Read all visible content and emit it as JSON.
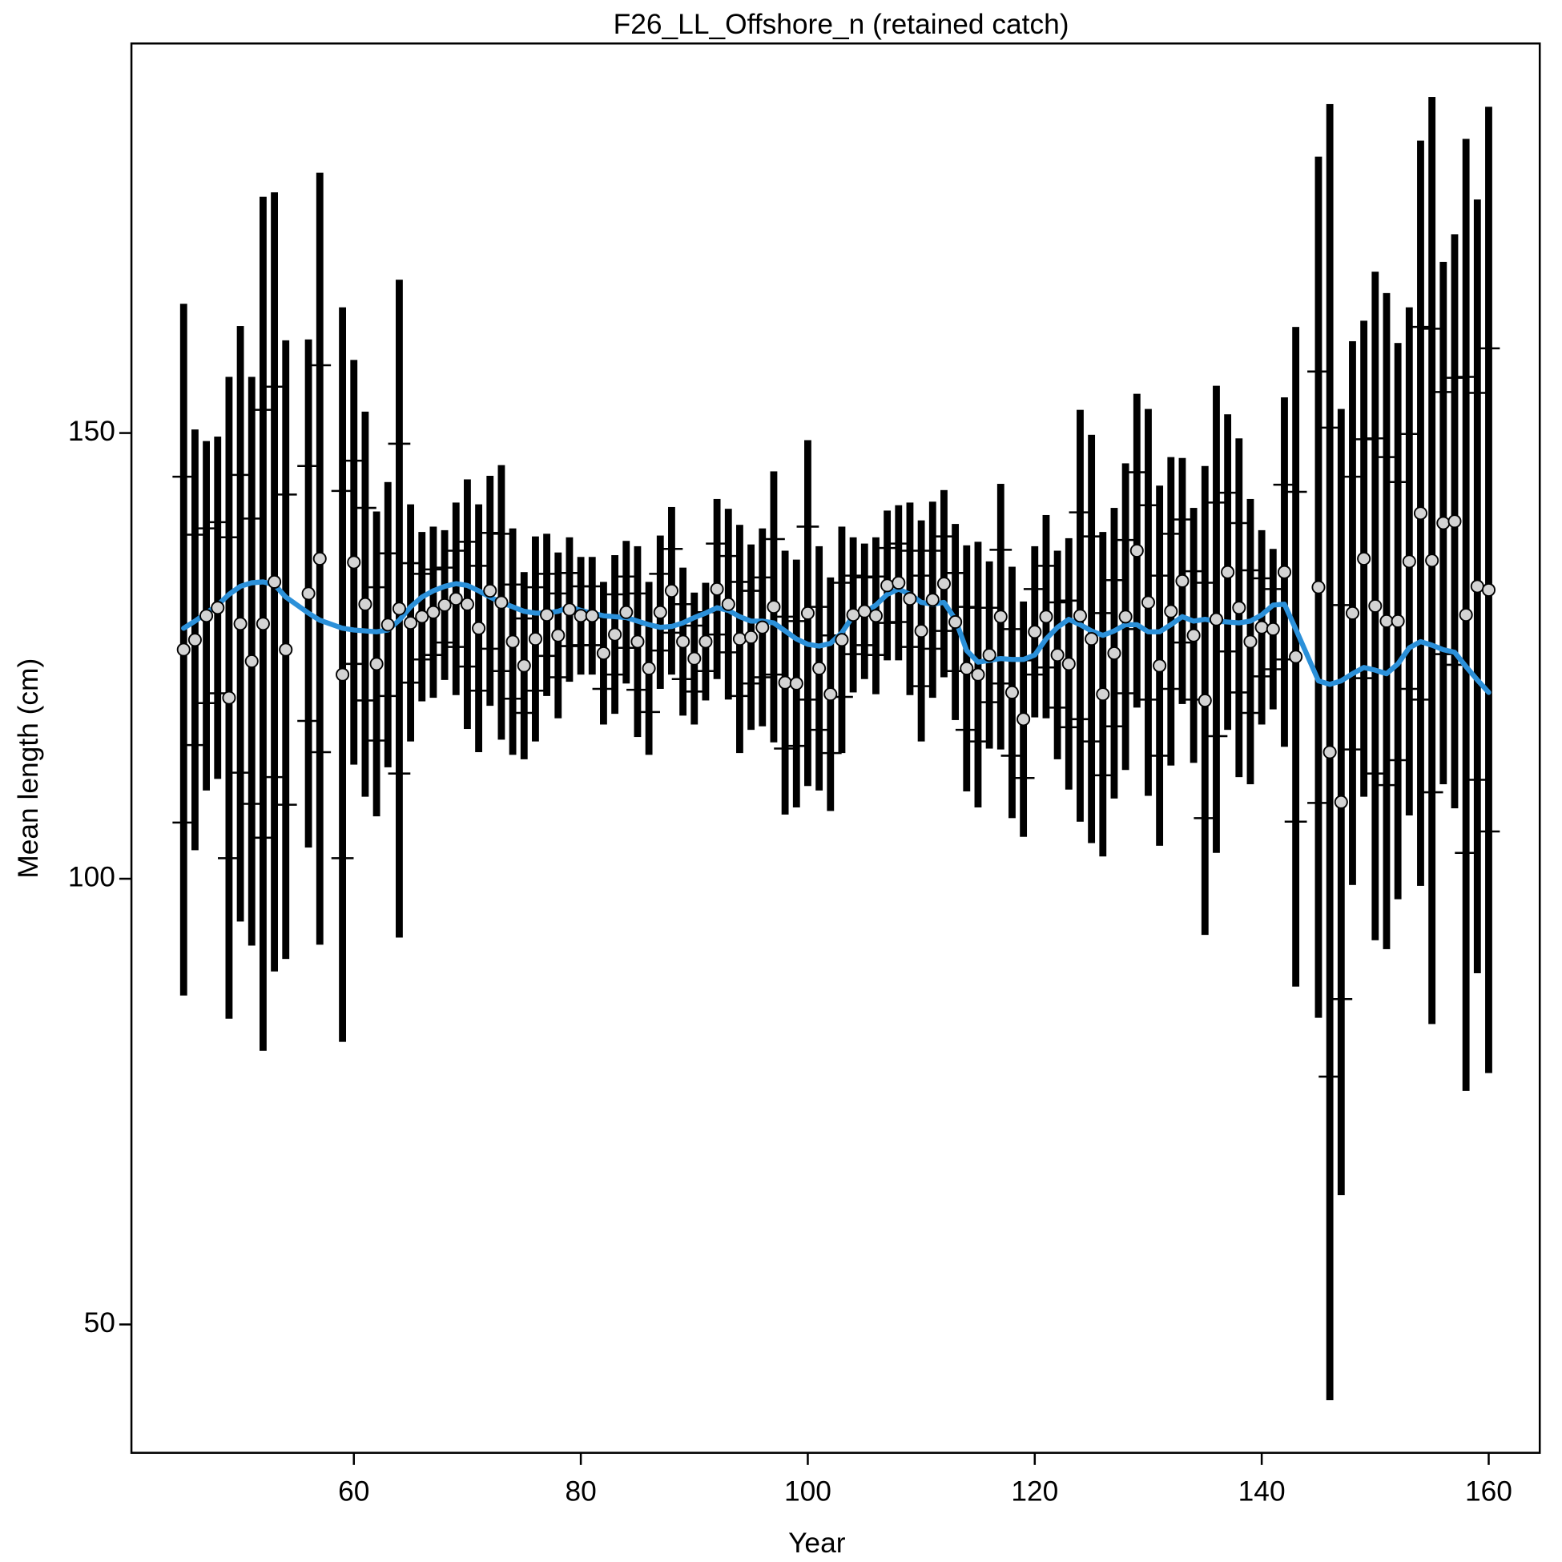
{
  "chart_data": {
    "type": "errorbar",
    "title": "F26_LL_Offshore_n (retained catch)",
    "x_label": "Year",
    "y_label": "Mean length (cm)",
    "xlim": [
      40.4,
      164.5
    ],
    "ylim": [
      35.6,
      193.7
    ],
    "xticks": [
      60,
      80,
      100,
      120,
      140,
      160
    ],
    "yticks": [
      50,
      100,
      150
    ],
    "x": [
      45,
      46,
      47,
      48,
      49,
      50,
      51,
      52,
      53,
      54,
      56,
      57,
      59,
      60,
      61,
      62,
      63,
      64,
      65,
      66,
      67,
      68,
      69,
      70,
      71,
      72,
      73,
      74,
      75,
      76,
      77,
      78,
      79,
      80,
      81,
      82,
      83,
      84,
      85,
      86,
      87,
      88,
      89,
      90,
      91,
      92,
      93,
      94,
      95,
      96,
      97,
      98,
      99,
      100,
      101,
      102,
      103,
      104,
      105,
      106,
      107,
      108,
      109,
      110,
      111,
      112,
      113,
      114,
      115,
      116,
      117,
      118,
      119,
      120,
      121,
      122,
      123,
      124,
      125,
      126,
      127,
      128,
      129,
      130,
      131,
      132,
      133,
      134,
      135,
      136,
      137,
      138,
      139,
      140,
      141,
      142,
      143,
      145,
      146,
      147,
      148,
      149,
      150,
      151,
      152,
      153,
      154,
      155,
      156,
      157,
      158,
      159,
      160
    ],
    "series": [
      {
        "color": "#d3d3d3",
        "bar_color": "#000000",
        "values": [
          125.7,
          126.8,
          129.5,
          130.4,
          120.3,
          128.6,
          124.4,
          128.6,
          133.3,
          125.7,
          132.0,
          135.9,
          122.9,
          135.5,
          130.8,
          124.1,
          128.5,
          130.3,
          128.7,
          129.4,
          129.9,
          130.7,
          131.4,
          130.8,
          128.1,
          132.3,
          131.0,
          126.6,
          123.9,
          126.9,
          129.6,
          127.3,
          130.2,
          129.5,
          129.5,
          125.3,
          127.4,
          129.9,
          126.6,
          123.6,
          129.9,
          132.3,
          126.6,
          124.7,
          126.6,
          132.5,
          130.8,
          126.9,
          127.1,
          128.2,
          130.5,
          122.0,
          121.9,
          129.8,
          123.6,
          120.7,
          126.8,
          129.6,
          130.0,
          129.5,
          132.9,
          133.2,
          131.4,
          127.8,
          131.3,
          133.1,
          128.8,
          123.6,
          122.9,
          125.1,
          129.4,
          120.9,
          117.9,
          127.7,
          129.4,
          125.1,
          124.1,
          129.5,
          126.9,
          120.7,
          125.3,
          129.4,
          136.8,
          131.0,
          123.9,
          130.0,
          133.4,
          127.3,
          120.0,
          129.1,
          134.4,
          130.4,
          126.6,
          128.2,
          128.0,
          134.4,
          124.9,
          132.7,
          114.2,
          108.6,
          129.8,
          135.9,
          130.6,
          128.9,
          128.9,
          135.6,
          141.0,
          135.7,
          139.9,
          140.1,
          129.6,
          132.8,
          132.4
        ],
        "errors": [
          38.8,
          23.6,
          19.6,
          19.2,
          36.0,
          33.4,
          31.9,
          47.9,
          43.7,
          34.7,
          28.5,
          43.3,
          41.2,
          22.7,
          21.6,
          17.1,
          16.0,
          36.9,
          13.3,
          9.5,
          9.6,
          8.4,
          10.8,
          14.0,
          13.9,
          12.9,
          15.4,
          12.7,
          10.5,
          11.5,
          9.1,
          9.3,
          8.1,
          6.6,
          6.6,
          8.0,
          8.9,
          8.0,
          10.7,
          9.7,
          8.6,
          9.4,
          8.3,
          7.4,
          6.6,
          10.1,
          10.7,
          12.8,
          10.4,
          11.1,
          15.2,
          14.8,
          13.9,
          19.4,
          13.7,
          13.1,
          12.7,
          8.7,
          7.6,
          8.8,
          8.4,
          8.7,
          10.8,
          12.4,
          11.0,
          10.5,
          11.0,
          13.8,
          14.9,
          10.5,
          14.9,
          14.1,
          13.2,
          9.6,
          11.4,
          11.7,
          14.1,
          23.1,
          22.9,
          18.2,
          16.3,
          17.2,
          17.6,
          21.7,
          20.2,
          17.3,
          13.8,
          14.3,
          26.3,
          26.2,
          17.7,
          19.0,
          16.0,
          10.9,
          9.0,
          19.6,
          37.0,
          48.3,
          72.7,
          44.1,
          30.5,
          26.7,
          37.5,
          36.8,
          31.2,
          28.5,
          41.8,
          52.0,
          29.3,
          32.2,
          53.4,
          43.4,
          54.2
        ],
        "inner_errors": [
          19.4,
          11.8,
          9.8,
          9.6,
          18.0,
          16.7,
          16.0,
          24.0,
          21.9,
          17.4,
          14.3,
          21.7,
          20.6,
          11.4,
          10.8,
          8.6,
          8.0,
          18.5,
          6.7,
          4.8,
          4.8,
          4.2,
          5.4,
          7.0,
          7.0,
          6.5,
          7.7,
          6.4,
          5.3,
          5.8,
          4.6,
          4.7,
          4.1,
          3.3,
          3.3,
          4.0,
          4.5,
          4.0,
          5.4,
          4.9,
          4.3,
          4.7,
          4.2,
          3.7,
          3.3,
          5.1,
          5.4,
          6.4,
          5.2,
          5.6,
          7.6,
          7.4,
          7.0,
          9.7,
          6.9,
          6.6,
          6.4,
          4.4,
          3.8,
          4.4,
          4.2,
          4.4,
          5.4,
          6.2,
          5.5,
          5.3,
          5.5,
          6.9,
          7.5,
          5.3,
          7.5,
          7.1,
          6.6,
          4.8,
          5.7,
          5.9,
          7.1,
          11.6,
          11.5,
          9.1,
          8.2,
          8.6,
          8.8,
          10.9,
          10.1,
          8.7,
          6.9,
          7.2,
          13.2,
          13.1,
          8.9,
          9.5,
          8.0,
          5.5,
          4.5,
          9.8,
          18.5,
          24.2,
          36.4,
          22.1,
          15.3,
          13.4,
          18.8,
          18.4,
          15.6,
          14.3,
          20.9,
          26.0,
          14.7,
          16.1,
          26.7,
          21.7,
          27.1
        ]
      },
      {
        "color": "#2b90d9",
        "values": [
          128.1,
          128.9,
          129.8,
          130.7,
          131.9,
          132.8,
          133.2,
          133.3,
          133.0,
          131.6,
          129.8,
          129.0,
          128.1,
          127.9,
          127.8,
          127.7,
          127.9,
          129.0,
          130.5,
          131.6,
          132.3,
          132.8,
          133.1,
          132.9,
          132.3,
          131.6,
          131.0,
          130.5,
          130.0,
          129.8,
          129.8,
          130.0,
          130.5,
          130.1,
          129.8,
          129.5,
          129.4,
          129.3,
          128.9,
          128.5,
          128.2,
          128.3,
          128.7,
          129.3,
          129.8,
          130.4,
          130.1,
          129.4,
          128.9,
          128.9,
          128.7,
          127.8,
          126.9,
          126.3,
          126.1,
          126.4,
          127.6,
          129.5,
          129.8,
          130.7,
          131.9,
          132.5,
          131.9,
          131.0,
          130.8,
          131.0,
          129.1,
          125.6,
          124.3,
          124.5,
          124.7,
          124.6,
          124.6,
          125.1,
          126.9,
          128.2,
          129.1,
          128.5,
          127.8,
          127.3,
          127.8,
          128.5,
          128.5,
          127.7,
          127.7,
          128.5,
          129.4,
          128.9,
          129.1,
          128.9,
          128.8,
          128.7,
          128.9,
          129.6,
          130.7,
          130.8,
          128.0,
          122.2,
          121.8,
          122.2,
          123.0,
          123.7,
          123.4,
          123.0,
          124.1,
          125.9,
          126.6,
          126.2,
          125.7,
          125.4,
          123.8,
          122.3,
          120.9
        ]
      }
    ]
  }
}
